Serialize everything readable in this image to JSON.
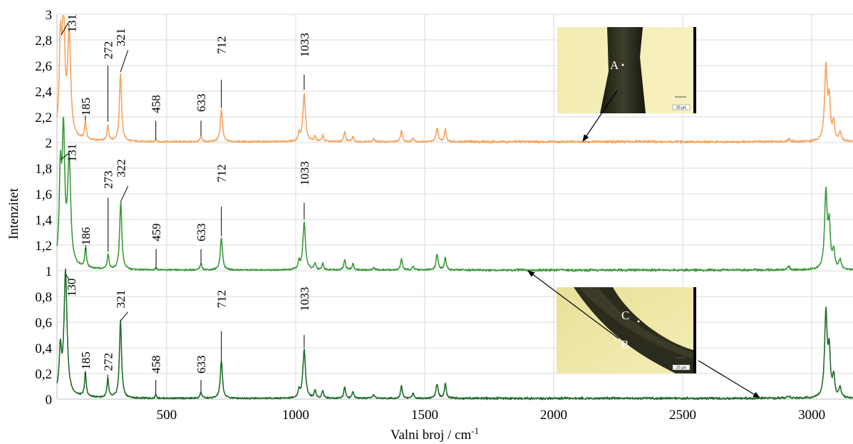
{
  "chart_data": {
    "type": "line",
    "xlabel": "Valni broj / cm",
    "xlabel_sup": "-1",
    "ylabel": "Intenzitet",
    "xlim": [
      75,
      3160
    ],
    "ylim": [
      0,
      3
    ],
    "x_ticks": [
      {
        "value": 500,
        "label": "500"
      },
      {
        "value": 1000,
        "label": "1000"
      },
      {
        "value": 1500,
        "label": "1500"
      },
      {
        "value": 2000,
        "label": "2000"
      },
      {
        "value": 2500,
        "label": "2500"
      },
      {
        "value": 3000,
        "label": "3000"
      }
    ],
    "y_ticks": [
      {
        "value": 0,
        "label": "0"
      },
      {
        "value": 0.2,
        "label": "0,2"
      },
      {
        "value": 0.4,
        "label": "0,4"
      },
      {
        "value": 0.6,
        "label": "0,6"
      },
      {
        "value": 0.8,
        "label": "0,8"
      },
      {
        "value": 1,
        "label": "1"
      },
      {
        "value": 1.2,
        "label": "1,2"
      },
      {
        "value": 1.4,
        "label": "1,4"
      },
      {
        "value": 1.6,
        "label": "1,6"
      },
      {
        "value": 1.8,
        "label": "1,8"
      },
      {
        "value": 2,
        "label": "2"
      },
      {
        "value": 2.2,
        "label": "2,2"
      },
      {
        "value": 2.4,
        "label": "2,4"
      },
      {
        "value": 2.6,
        "label": "2,6"
      },
      {
        "value": 2.8,
        "label": "2,8"
      },
      {
        "value": 3,
        "label": "3"
      }
    ],
    "grid": true,
    "series": [
      {
        "color": "#f4a460",
        "baseline": 2.0,
        "peaks": [
          {
            "x": 88,
            "h": 0.68,
            "w": 5
          },
          {
            "x": 100,
            "h": 0.98,
            "w": 6
          },
          {
            "x": 122,
            "h": 0.8,
            "w": 7
          },
          {
            "x": 185,
            "h": 0.14,
            "w": 4
          },
          {
            "x": 272,
            "h": 0.12,
            "w": 4
          },
          {
            "x": 321,
            "h": 0.53,
            "w": 5
          },
          {
            "x": 458,
            "h": 0.02,
            "w": 3
          },
          {
            "x": 633,
            "h": 0.04,
            "w": 4
          },
          {
            "x": 712,
            "h": 0.25,
            "w": 5
          },
          {
            "x": 1013,
            "h": 0.06,
            "w": 4
          },
          {
            "x": 1033,
            "h": 0.37,
            "w": 6
          },
          {
            "x": 1075,
            "h": 0.04,
            "w": 4
          },
          {
            "x": 1105,
            "h": 0.05,
            "w": 4
          },
          {
            "x": 1190,
            "h": 0.08,
            "w": 4
          },
          {
            "x": 1222,
            "h": 0.04,
            "w": 4
          },
          {
            "x": 1303,
            "h": 0.02,
            "w": 4
          },
          {
            "x": 1410,
            "h": 0.09,
            "w": 4
          },
          {
            "x": 1455,
            "h": 0.03,
            "w": 4
          },
          {
            "x": 1548,
            "h": 0.1,
            "w": 5
          },
          {
            "x": 1580,
            "h": 0.1,
            "w": 4
          },
          {
            "x": 2910,
            "h": 0.02,
            "w": 6
          },
          {
            "x": 3055,
            "h": 0.58,
            "w": 6
          },
          {
            "x": 3068,
            "h": 0.3,
            "w": 5
          },
          {
            "x": 3085,
            "h": 0.14,
            "w": 5
          },
          {
            "x": 3110,
            "h": 0.07,
            "w": 5
          }
        ],
        "labels": [
          {
            "text": "131",
            "x": 131,
            "label_y": 2.93,
            "leader": [
              [
                92,
                2.84
              ],
              [
                117,
                2.93
              ]
            ]
          },
          {
            "text": "185",
            "x": 185,
            "label_y": 2.28,
            "leader": [
              [
                185,
                2.17
              ],
              [
                185,
                2.21
              ]
            ]
          },
          {
            "text": "272",
            "x": 272,
            "label_y": 2.72,
            "leader": [
              [
                272,
                2.16
              ],
              [
                272,
                2.6
              ]
            ]
          },
          {
            "text": "321",
            "x": 321,
            "label_y": 2.82,
            "leader": [
              [
                321,
                2.55
              ],
              [
                350,
                2.72
              ]
            ]
          },
          {
            "text": "458",
            "x": 458,
            "label_y": 2.3,
            "leader": [
              [
                458,
                2.02
              ],
              [
                458,
                2.17
              ]
            ]
          },
          {
            "text": "633",
            "x": 633,
            "label_y": 2.31,
            "leader": [
              [
                633,
                2.05
              ],
              [
                633,
                2.17
              ]
            ]
          },
          {
            "text": "712",
            "x": 712,
            "label_y": 2.76,
            "leader": [
              [
                712,
                2.27
              ],
              [
                712,
                2.49
              ]
            ]
          },
          {
            "text": "1033",
            "x": 1033,
            "label_y": 2.76,
            "leader": [
              [
                1033,
                2.41
              ],
              [
                1033,
                2.53
              ]
            ]
          }
        ]
      },
      {
        "color": "#3c9a3c",
        "baseline": 1.0,
        "peaks": [
          {
            "x": 88,
            "h": 0.66,
            "w": 5
          },
          {
            "x": 100,
            "h": 1.0,
            "w": 6
          },
          {
            "x": 122,
            "h": 0.82,
            "w": 7
          },
          {
            "x": 186,
            "h": 0.15,
            "w": 4
          },
          {
            "x": 273,
            "h": 0.12,
            "w": 4
          },
          {
            "x": 322,
            "h": 0.53,
            "w": 5
          },
          {
            "x": 459,
            "h": 0.02,
            "w": 3
          },
          {
            "x": 633,
            "h": 0.05,
            "w": 4
          },
          {
            "x": 712,
            "h": 0.25,
            "w": 5
          },
          {
            "x": 1013,
            "h": 0.06,
            "w": 4
          },
          {
            "x": 1033,
            "h": 0.37,
            "w": 6
          },
          {
            "x": 1075,
            "h": 0.05,
            "w": 4
          },
          {
            "x": 1105,
            "h": 0.05,
            "w": 4
          },
          {
            "x": 1190,
            "h": 0.08,
            "w": 4
          },
          {
            "x": 1222,
            "h": 0.05,
            "w": 4
          },
          {
            "x": 1303,
            "h": 0.02,
            "w": 4
          },
          {
            "x": 1410,
            "h": 0.09,
            "w": 4
          },
          {
            "x": 1455,
            "h": 0.03,
            "w": 4
          },
          {
            "x": 1548,
            "h": 0.12,
            "w": 5
          },
          {
            "x": 1580,
            "h": 0.1,
            "w": 4
          },
          {
            "x": 2910,
            "h": 0.03,
            "w": 6
          },
          {
            "x": 3055,
            "h": 0.6,
            "w": 6
          },
          {
            "x": 3068,
            "h": 0.32,
            "w": 5
          },
          {
            "x": 3085,
            "h": 0.14,
            "w": 5
          },
          {
            "x": 3110,
            "h": 0.08,
            "w": 5
          }
        ],
        "labels": [
          {
            "text": "131",
            "x": 131,
            "label_y": 1.92,
            "leader": [
              [
                92,
                1.87
              ],
              [
                117,
                1.91
              ]
            ]
          },
          {
            "text": "186",
            "x": 186,
            "label_y": 1.27,
            "leader": [
              [
                186,
                1.16
              ],
              [
                186,
                1.2
              ]
            ]
          },
          {
            "text": "273",
            "x": 273,
            "label_y": 1.71,
            "leader": [
              [
                273,
                1.15
              ],
              [
                273,
                1.57
              ]
            ]
          },
          {
            "text": "322",
            "x": 322,
            "label_y": 1.8,
            "leader": [
              [
                322,
                1.54
              ],
              [
                350,
                1.66
              ]
            ]
          },
          {
            "text": "459",
            "x": 459,
            "label_y": 1.3,
            "leader": [
              [
                459,
                1.02
              ],
              [
                459,
                1.17
              ]
            ]
          },
          {
            "text": "633",
            "x": 633,
            "label_y": 1.3,
            "leader": [
              [
                633,
                1.05
              ],
              [
                633,
                1.17
              ]
            ]
          },
          {
            "text": "712",
            "x": 712,
            "label_y": 1.76,
            "leader": [
              [
                712,
                1.27
              ],
              [
                712,
                1.5
              ]
            ]
          },
          {
            "text": "1033",
            "x": 1033,
            "label_y": 1.76,
            "leader": [
              [
                1033,
                1.4
              ],
              [
                1033,
                1.53
              ]
            ]
          }
        ]
      },
      {
        "color": "#1f6e2a",
        "baseline": 0.0,
        "peaks": [
          {
            "x": 88,
            "h": 0.33,
            "w": 5
          },
          {
            "x": 108,
            "h": 0.96,
            "w": 7
          },
          {
            "x": 185,
            "h": 0.18,
            "w": 4
          },
          {
            "x": 272,
            "h": 0.14,
            "w": 4
          },
          {
            "x": 321,
            "h": 0.6,
            "w": 5
          },
          {
            "x": 458,
            "h": 0.03,
            "w": 3
          },
          {
            "x": 633,
            "h": 0.05,
            "w": 4
          },
          {
            "x": 712,
            "h": 0.29,
            "w": 5
          },
          {
            "x": 1013,
            "h": 0.06,
            "w": 4
          },
          {
            "x": 1033,
            "h": 0.38,
            "w": 6
          },
          {
            "x": 1075,
            "h": 0.06,
            "w": 4
          },
          {
            "x": 1105,
            "h": 0.06,
            "w": 4
          },
          {
            "x": 1190,
            "h": 0.09,
            "w": 4
          },
          {
            "x": 1222,
            "h": 0.05,
            "w": 4
          },
          {
            "x": 1303,
            "h": 0.03,
            "w": 4
          },
          {
            "x": 1410,
            "h": 0.1,
            "w": 4
          },
          {
            "x": 1455,
            "h": 0.04,
            "w": 4
          },
          {
            "x": 1548,
            "h": 0.11,
            "w": 5
          },
          {
            "x": 1580,
            "h": 0.12,
            "w": 4
          },
          {
            "x": 2910,
            "h": 0.02,
            "w": 6
          },
          {
            "x": 3055,
            "h": 0.66,
            "w": 6
          },
          {
            "x": 3068,
            "h": 0.34,
            "w": 5
          },
          {
            "x": 3085,
            "h": 0.16,
            "w": 5
          },
          {
            "x": 3110,
            "h": 0.08,
            "w": 5
          }
        ],
        "labels": [
          {
            "text": "130",
            "x": 130,
            "label_y": 0.87,
            "leader": [
              [
                110,
                0.97
              ],
              [
                122,
                0.93
              ]
            ]
          },
          {
            "text": "185",
            "x": 185,
            "label_y": 0.3,
            "leader": [
              [
                185,
                0.19
              ],
              [
                185,
                0.22
              ]
            ]
          },
          {
            "text": "272",
            "x": 272,
            "label_y": 0.29,
            "leader": [
              [
                272,
                0.15
              ],
              [
                272,
                0.19
              ]
            ]
          },
          {
            "text": "321",
            "x": 321,
            "label_y": 0.78,
            "leader": [
              [
                321,
                0.61
              ],
              [
                350,
                0.68
              ]
            ]
          },
          {
            "text": "458",
            "x": 458,
            "label_y": 0.27,
            "leader": [
              [
                458,
                0.04
              ],
              [
                458,
                0.15
              ]
            ]
          },
          {
            "text": "633",
            "x": 633,
            "label_y": 0.27,
            "leader": [
              [
                633,
                0.06
              ],
              [
                633,
                0.15
              ]
            ]
          },
          {
            "text": "712",
            "x": 712,
            "label_y": 0.78,
            "leader": [
              [
                712,
                0.3
              ],
              [
                712,
                0.53
              ]
            ]
          },
          {
            "text": "1033",
            "x": 1033,
            "label_y": 0.78,
            "leader": [
              [
                1033,
                0.4
              ],
              [
                1033,
                0.5
              ]
            ]
          }
        ]
      }
    ]
  },
  "insets": [
    {
      "point_labels": [
        "A"
      ],
      "scale_text": "20 µm"
    },
    {
      "point_labels": [
        "C",
        "B"
      ],
      "scale_text": "20 µm"
    }
  ]
}
